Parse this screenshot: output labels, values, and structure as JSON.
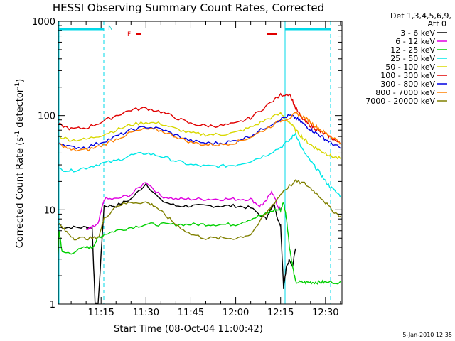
{
  "chart_data": {
    "type": "line",
    "title": "HESSI Observing Summary Count Rates, Corrected",
    "xlabel": "Start Time (08-Oct-04 11:00:42)",
    "ylabel_parts": [
      "Corrected Count Rate (s",
      "-1",
      " detector",
      "-1",
      ")"
    ],
    "yscale": "log",
    "ylim": [
      1,
      1000
    ],
    "xlim_min": [
      0.7,
      75.5
    ],
    "x_tick_minutes": [
      15,
      30,
      45,
      60,
      75,
      90
    ],
    "x_tick_labels": [
      "11:15",
      "11:30",
      "11:45",
      "12:00",
      "12:15",
      "12:30"
    ],
    "y_tick_values": [
      1,
      10,
      100,
      1000
    ],
    "y_tick_labels": [
      "1",
      "10",
      "100",
      "1000"
    ],
    "legend_header": [
      "Det 1,3,4,5,6,9,",
      "Att 0"
    ],
    "legend_position": "right",
    "x_units": "minutes after 11:00",
    "series": [
      {
        "name": "3 - 6 keV",
        "color": "#000000",
        "x": [
          1,
          5,
          10,
          12,
          13,
          14,
          16,
          20,
          25,
          30,
          35,
          40,
          45,
          50,
          55,
          60,
          65,
          70,
          71,
          72,
          73,
          74,
          75,
          76,
          77,
          78,
          79,
          80,
          82,
          84,
          86,
          88,
          90,
          93,
          95
        ],
        "y": [
          6.5,
          6.5,
          6.5,
          6.5,
          1,
          1,
          11,
          11,
          13,
          19,
          12.5,
          11,
          11,
          11,
          11,
          11,
          10.5,
          8,
          9,
          11,
          11,
          8,
          7,
          1.5,
          2.5,
          3,
          2.5,
          4,
          null,
          null,
          null,
          null,
          null,
          null,
          null
        ]
      },
      {
        "name": "6 - 12 keV",
        "color": "#e000e0",
        "x": [
          1,
          5,
          10,
          12,
          14,
          16,
          20,
          25,
          30,
          35,
          40,
          45,
          50,
          55,
          60,
          65,
          68,
          70,
          72,
          74,
          75
        ],
        "y": [
          null,
          null,
          6,
          6.5,
          7,
          13,
          13,
          14.5,
          20,
          14,
          13,
          13,
          13,
          13,
          13,
          13,
          11,
          12,
          16,
          11,
          10
        ]
      },
      {
        "name": "12 - 25 keV",
        "color": "#00d000",
        "x": [
          0,
          1,
          2,
          5,
          10,
          12,
          14,
          16,
          20,
          25,
          30,
          35,
          40,
          45,
          50,
          55,
          60,
          65,
          70,
          73,
          75,
          76,
          77,
          78,
          79,
          80,
          82,
          84,
          86,
          88,
          90,
          95
        ],
        "y": [
          1,
          6,
          3.5,
          3.5,
          4,
          4,
          5,
          5.5,
          6,
          6.5,
          7,
          7,
          7,
          7,
          7,
          7,
          7,
          8,
          9,
          10,
          10,
          12,
          8,
          4,
          2.5,
          1.7,
          1.7,
          1.7,
          1.7,
          1.7,
          1.7,
          1.7
        ]
      },
      {
        "name": "25 - 50 keV",
        "color": "#00e8e8",
        "x": [
          1,
          5,
          10,
          15,
          20,
          25,
          30,
          35,
          40,
          45,
          50,
          55,
          60,
          65,
          70,
          75,
          78,
          80,
          82,
          84,
          86,
          88,
          90,
          92,
          95
        ],
        "y": [
          27,
          26,
          28,
          31,
          33,
          38,
          40,
          37,
          33,
          30,
          29,
          29,
          30,
          33,
          38,
          46,
          55,
          65,
          45,
          36,
          30,
          25,
          20,
          17,
          14
        ]
      },
      {
        "name": "50 - 100 keV",
        "color": "#d8d800",
        "x": [
          1,
          5,
          10,
          15,
          20,
          25,
          30,
          35,
          40,
          45,
          50,
          55,
          60,
          65,
          70,
          75,
          78,
          80,
          82,
          84,
          86,
          88,
          90,
          92,
          95
        ],
        "y": [
          60,
          55,
          56,
          62,
          70,
          80,
          85,
          82,
          72,
          65,
          63,
          63,
          66,
          75,
          90,
          105,
          85,
          70,
          60,
          52,
          47,
          43,
          40,
          37,
          35
        ]
      },
      {
        "name": "100 - 300 keV",
        "color": "#e00000",
        "x": [
          1,
          5,
          10,
          15,
          20,
          25,
          30,
          35,
          40,
          45,
          50,
          55,
          60,
          65,
          70,
          75,
          78,
          80,
          82,
          84,
          86,
          88,
          90,
          92,
          95
        ],
        "y": [
          80,
          72,
          74,
          85,
          100,
          115,
          120,
          110,
          95,
          82,
          78,
          78,
          82,
          95,
          125,
          165,
          170,
          120,
          95,
          82,
          75,
          68,
          63,
          58,
          50
        ]
      },
      {
        "name": "300 - 800 keV",
        "color": "#0000e0",
        "x": [
          1,
          5,
          10,
          15,
          20,
          25,
          30,
          35,
          40,
          45,
          50,
          55,
          60,
          65,
          70,
          75,
          78,
          80,
          82,
          84,
          86,
          88,
          90,
          92,
          95
        ],
        "y": [
          52,
          46,
          46,
          52,
          60,
          70,
          76,
          72,
          62,
          54,
          51,
          51,
          54,
          61,
          75,
          92,
          100,
          95,
          85,
          75,
          68,
          62,
          56,
          51,
          45
        ]
      },
      {
        "name": "800 - 7000 keV",
        "color": "#ff8000",
        "x": [
          1,
          5,
          10,
          15,
          20,
          25,
          30,
          35,
          40,
          45,
          50,
          55,
          60,
          65,
          70,
          75,
          78,
          80,
          82,
          84,
          86,
          88,
          90,
          92,
          95
        ],
        "y": [
          50,
          43,
          43,
          48,
          56,
          66,
          72,
          69,
          60,
          52,
          49,
          49,
          52,
          59,
          72,
          88,
          95,
          105,
          100,
          90,
          80,
          72,
          65,
          60,
          52
        ]
      },
      {
        "name": "7000 - 20000 keV",
        "color": "#808000",
        "x": [
          1,
          3,
          6,
          10,
          14,
          16,
          20,
          25,
          30,
          33,
          36,
          40,
          45,
          50,
          55,
          60,
          65,
          70,
          73,
          76,
          80,
          83,
          86,
          89,
          92,
          95
        ],
        "y": [
          7,
          6,
          5,
          5,
          5,
          8,
          11,
          12,
          12,
          11,
          9,
          7,
          5.5,
          5,
          5,
          5,
          5.5,
          9,
          12,
          16,
          20,
          19,
          16,
          13,
          10,
          8.5
        ]
      }
    ],
    "annotations": [
      {
        "text": "N",
        "color": "#00c8c8"
      },
      {
        "text": "F",
        "color": "#e00000"
      }
    ],
    "timestamp": "5-Jan-2010 12:35"
  }
}
